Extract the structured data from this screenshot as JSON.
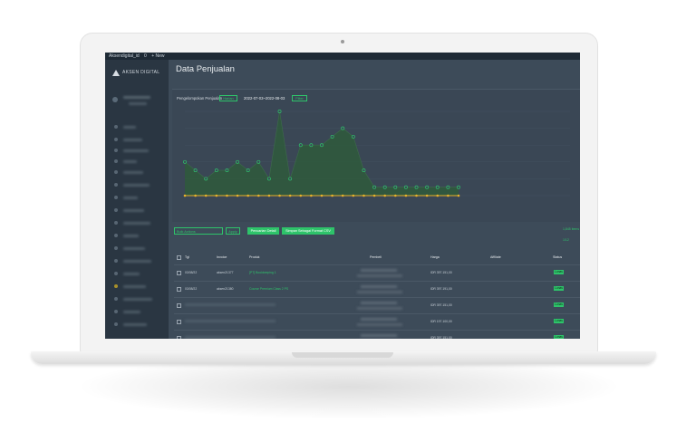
{
  "topbar": {
    "site": "Aksendigital_id",
    "comments": "0",
    "new_label": "+ New"
  },
  "sidebar": {
    "logo_text": "AKSEN DIGITAL"
  },
  "page": {
    "title": "Data Penjualan"
  },
  "filter": {
    "label": "Pengelompokan Penjualan",
    "mode": "Harian",
    "date_range": "2022-07-03~2022-08-03",
    "apply_label": "Filter"
  },
  "actions": {
    "bulk_placeholder": "Bulk Actions",
    "apply_label": "Apply",
    "detail_label": "Pencarian Detail",
    "export_label": "Simpan Sebagai Format CSV",
    "right_note": "1,845 items",
    "right_note2": "1/12"
  },
  "table": {
    "headers": [
      "Tgl",
      "Invoice",
      "Produk",
      "Pembeli",
      "Harga",
      "Affiliate",
      "Status"
    ],
    "status_label": "Lunas",
    "rows": [
      {
        "date": "03/08/22",
        "invoice": "aksen21377",
        "product": "[PT] Bookkeeping 1",
        "buyer": "",
        "price": "IDR 397.151,00",
        "affiliate": "",
        "status": "Lunas",
        "blurred": false
      },
      {
        "date": "03/08/22",
        "invoice": "aksen21380",
        "product": "Course Premium Class 2 PS",
        "buyer": "",
        "price": "IDR 397.191,00",
        "affiliate": "",
        "status": "Lunas",
        "blurred": false
      },
      {
        "date": "",
        "invoice": "",
        "product": "",
        "buyer": "",
        "price": "IDR 397.151,00",
        "affiliate": "",
        "status": "Lunas",
        "blurred": true
      },
      {
        "date": "",
        "invoice": "",
        "product": "",
        "buyer": "",
        "price": "IDR 197.100,00",
        "affiliate": "",
        "status": "Lunas",
        "blurred": true
      },
      {
        "date": "",
        "invoice": "",
        "product": "",
        "buyer": "",
        "price": "IDR 397.151,00",
        "affiliate": "",
        "status": "Lunas",
        "blurred": true
      }
    ]
  },
  "colors": {
    "accent": "#2ec36a",
    "area": "#2f5a3c",
    "baseline": "#e8b22a",
    "background": "#3d4b59"
  },
  "chart_data": {
    "type": "area",
    "title": "",
    "xlabel": "",
    "ylabel": "",
    "series": [
      {
        "values": [
          4,
          3,
          2,
          3,
          3,
          4,
          3,
          4,
          2,
          10,
          2,
          6,
          6,
          6,
          7,
          8,
          7,
          3,
          1,
          1,
          1,
          1,
          1,
          1,
          1,
          1,
          1
        ]
      },
      {
        "values": [
          0,
          0,
          0,
          0,
          0,
          0,
          0,
          0,
          0,
          0,
          0,
          0,
          0,
          0,
          0,
          0,
          0,
          0,
          0,
          0,
          0,
          0,
          0,
          0,
          0,
          0,
          0
        ]
      }
    ],
    "ylim": [
      0,
      10
    ],
    "grid": true,
    "legend": "none"
  }
}
